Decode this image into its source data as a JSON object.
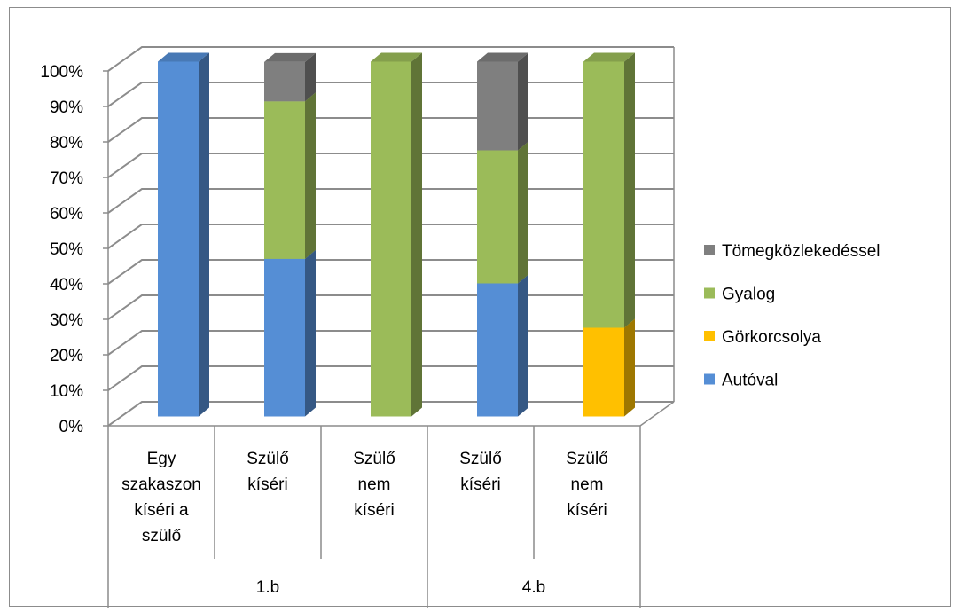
{
  "chart_data": {
    "type": "bar",
    "stacked": true,
    "percent_stacked": true,
    "style": "3d",
    "categories": [
      {
        "label_lines": [
          "Egy",
          "szakaszon",
          "kíséri a",
          "szülő"
        ],
        "group": "1.b"
      },
      {
        "label_lines": [
          "Szülő",
          "kíséri"
        ],
        "group": "1.b"
      },
      {
        "label_lines": [
          "Szülő",
          "nem",
          "kíséri"
        ],
        "group": "1.b"
      },
      {
        "label_lines": [
          "Szülő",
          "kíséri"
        ],
        "group": "4.b"
      },
      {
        "label_lines": [
          "Szülő",
          "nem",
          "kíséri"
        ],
        "group": "4.b"
      }
    ],
    "groups": [
      "1.b",
      "4.b"
    ],
    "series": [
      {
        "name": "Autóval",
        "color": "#558ed5",
        "values": [
          100,
          44.4,
          0,
          37.5,
          0
        ]
      },
      {
        "name": "Görkorcsolya",
        "color": "#ffc000",
        "values": [
          0,
          0,
          0,
          0,
          25
        ]
      },
      {
        "name": "Gyalog",
        "color": "#9bbb59",
        "values": [
          0,
          44.4,
          100,
          37.5,
          75
        ]
      },
      {
        "name": "Tömegközlekedéssel",
        "color": "#7f7f7f",
        "values": [
          0,
          11.1,
          0,
          25,
          0
        ]
      }
    ],
    "yticks": [
      "0%",
      "10%",
      "20%",
      "30%",
      "40%",
      "50%",
      "60%",
      "70%",
      "80%",
      "90%",
      "100%"
    ],
    "ylim": [
      0,
      100
    ],
    "grid": true,
    "legend_position": "right",
    "legend_order": [
      "Tömegközlekedéssel",
      "Gyalog",
      "Görkorcsolya",
      "Autóval"
    ]
  }
}
